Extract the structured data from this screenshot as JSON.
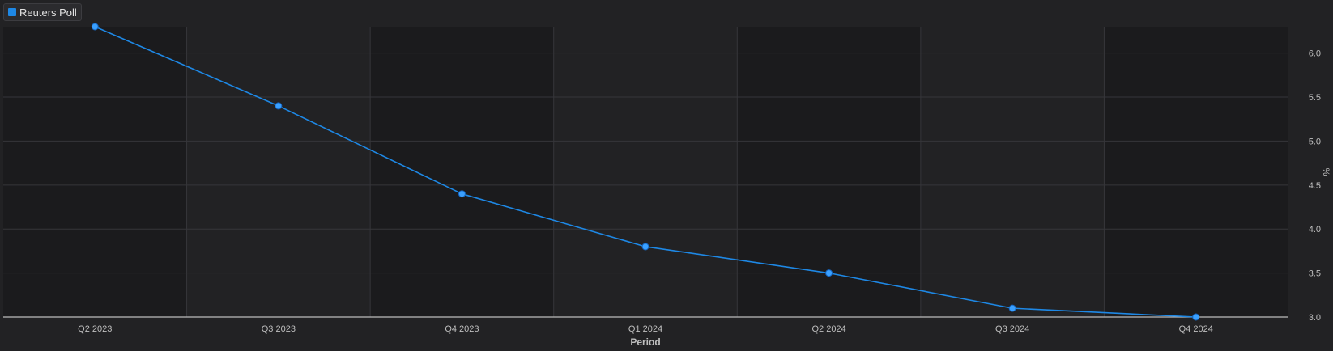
{
  "legend": {
    "items": [
      {
        "label": "Reuters Poll",
        "color": "#1e88e5"
      }
    ]
  },
  "colors": {
    "background": "#222224",
    "band_dark": "#1b1b1d",
    "band_light": "#222224",
    "grid": "#36363a",
    "axis": "#bcbcbc",
    "tick_label": "#bfbfbf",
    "line": "#1e88e5",
    "marker": "#3aa0ff"
  },
  "chart_data": {
    "type": "line",
    "categories": [
      "Q2 2023",
      "Q3 2023",
      "Q4 2023",
      "Q1 2024",
      "Q2 2024",
      "Q3 2024",
      "Q4 2024"
    ],
    "series": [
      {
        "name": "Reuters Poll",
        "values": [
          6.3,
          5.4,
          4.4,
          3.8,
          3.5,
          3.1,
          3.0
        ]
      }
    ],
    "xlabel": "Period",
    "ylabel": "%",
    "ylim": [
      3.0,
      6.3
    ],
    "yticks": [
      "3.0",
      "3.5",
      "4.0",
      "4.5",
      "5.0",
      "5.5",
      "6.0"
    ],
    "grid": true,
    "y_axis_position": "right",
    "legend_position": "top-left"
  }
}
